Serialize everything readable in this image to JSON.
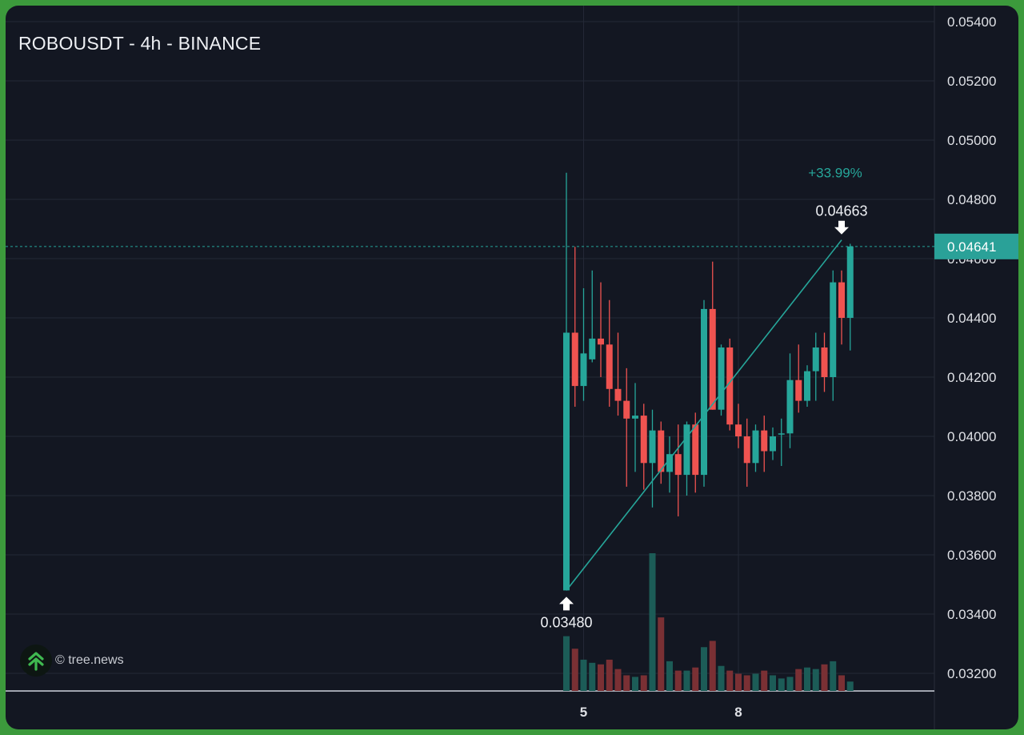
{
  "title": "ROBOUSDT - 4h - BINANCE",
  "watermark": {
    "text": "© tree.news",
    "icon": "tree-news-logo-icon"
  },
  "colors": {
    "background": "#131722",
    "up": "#26a69a",
    "down": "#ef5350",
    "volume_up": "#1c5c57",
    "volume_down": "#7a3034",
    "grid": "#232836",
    "text": "#dfe1e6",
    "price_label": "#2aa198"
  },
  "chart_data": {
    "type": "candlestick",
    "symbol": "ROBOUSDT",
    "interval": "4h",
    "exchange": "BINANCE",
    "ylim": [
      0.0314,
      0.0546
    ],
    "y_ticks": [
      "0.05400",
      "0.05200",
      "0.05000",
      "0.04800",
      "0.04600",
      "0.04400",
      "0.04200",
      "0.04000",
      "0.03800",
      "0.03600",
      "0.03400",
      "0.03200"
    ],
    "x_ticks": [
      {
        "label": "5",
        "candle_index": 2
      },
      {
        "label": "8",
        "candle_index": 20
      }
    ],
    "grid": true,
    "last_price": {
      "value": 0.04641,
      "label": "0.04641"
    },
    "measurement": {
      "change": "+33.99%",
      "from": {
        "candle_index": 0,
        "price": 0.0348,
        "label": "0.03480"
      },
      "to": {
        "candle_index": 32,
        "price": 0.04663,
        "label": "0.04663"
      }
    },
    "candles": [
      {
        "o": 0.0348,
        "h": 0.0489,
        "l": 0.0348,
        "c": 0.0435,
        "v": 0.35
      },
      {
        "o": 0.0435,
        "h": 0.0464,
        "l": 0.041,
        "c": 0.0417,
        "v": 0.27
      },
      {
        "o": 0.0417,
        "h": 0.045,
        "l": 0.0412,
        "c": 0.0428,
        "v": 0.2
      },
      {
        "o": 0.0426,
        "h": 0.0456,
        "l": 0.0425,
        "c": 0.0433,
        "v": 0.18
      },
      {
        "o": 0.0433,
        "h": 0.0452,
        "l": 0.042,
        "c": 0.0431,
        "v": 0.17
      },
      {
        "o": 0.0431,
        "h": 0.0446,
        "l": 0.041,
        "c": 0.0416,
        "v": 0.2
      },
      {
        "o": 0.0416,
        "h": 0.0435,
        "l": 0.0407,
        "c": 0.0412,
        "v": 0.14
      },
      {
        "o": 0.0412,
        "h": 0.0423,
        "l": 0.0383,
        "c": 0.0406,
        "v": 0.1
      },
      {
        "o": 0.0406,
        "h": 0.0418,
        "l": 0.0388,
        "c": 0.0407,
        "v": 0.09
      },
      {
        "o": 0.0407,
        "h": 0.0411,
        "l": 0.0382,
        "c": 0.0391,
        "v": 0.1
      },
      {
        "o": 0.0391,
        "h": 0.0409,
        "l": 0.0376,
        "c": 0.0402,
        "v": 0.88
      },
      {
        "o": 0.0402,
        "h": 0.0405,
        "l": 0.0384,
        "c": 0.0388,
        "v": 0.47
      },
      {
        "o": 0.0388,
        "h": 0.04,
        "l": 0.0381,
        "c": 0.0394,
        "v": 0.19
      },
      {
        "o": 0.0394,
        "h": 0.0404,
        "l": 0.0373,
        "c": 0.0387,
        "v": 0.13
      },
      {
        "o": 0.0387,
        "h": 0.0405,
        "l": 0.038,
        "c": 0.0404,
        "v": 0.13
      },
      {
        "o": 0.0404,
        "h": 0.0408,
        "l": 0.0381,
        "c": 0.0387,
        "v": 0.15
      },
      {
        "o": 0.0387,
        "h": 0.0446,
        "l": 0.0383,
        "c": 0.0443,
        "v": 0.28
      },
      {
        "o": 0.0443,
        "h": 0.0459,
        "l": 0.0409,
        "c": 0.0409,
        "v": 0.32
      },
      {
        "o": 0.0409,
        "h": 0.0431,
        "l": 0.0407,
        "c": 0.043,
        "v": 0.16
      },
      {
        "o": 0.043,
        "h": 0.0433,
        "l": 0.0402,
        "c": 0.0404,
        "v": 0.13
      },
      {
        "o": 0.0404,
        "h": 0.0411,
        "l": 0.0396,
        "c": 0.04,
        "v": 0.11
      },
      {
        "o": 0.04,
        "h": 0.0406,
        "l": 0.0383,
        "c": 0.0391,
        "v": 0.1
      },
      {
        "o": 0.0391,
        "h": 0.0404,
        "l": 0.0388,
        "c": 0.0402,
        "v": 0.11
      },
      {
        "o": 0.0402,
        "h": 0.0407,
        "l": 0.0388,
        "c": 0.0395,
        "v": 0.13
      },
      {
        "o": 0.0395,
        "h": 0.0403,
        "l": 0.0392,
        "c": 0.04,
        "v": 0.1
      },
      {
        "o": 0.0401,
        "h": 0.0406,
        "l": 0.039,
        "c": 0.0401,
        "v": 0.08
      },
      {
        "o": 0.0401,
        "h": 0.0428,
        "l": 0.0396,
        "c": 0.0419,
        "v": 0.09
      },
      {
        "o": 0.0419,
        "h": 0.0431,
        "l": 0.0408,
        "c": 0.0412,
        "v": 0.14
      },
      {
        "o": 0.0412,
        "h": 0.0424,
        "l": 0.041,
        "c": 0.0422,
        "v": 0.15
      },
      {
        "o": 0.0422,
        "h": 0.0435,
        "l": 0.0412,
        "c": 0.043,
        "v": 0.14
      },
      {
        "o": 0.043,
        "h": 0.0435,
        "l": 0.0415,
        "c": 0.042,
        "v": 0.17
      },
      {
        "o": 0.042,
        "h": 0.0456,
        "l": 0.0412,
        "c": 0.0452,
        "v": 0.19
      },
      {
        "o": 0.0452,
        "h": 0.0456,
        "l": 0.0431,
        "c": 0.044,
        "v": 0.1
      },
      {
        "o": 0.044,
        "h": 0.0465,
        "l": 0.0429,
        "c": 0.04641,
        "v": 0.06
      }
    ]
  }
}
